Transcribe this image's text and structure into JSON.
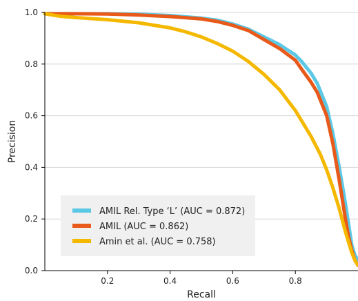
{
  "chart_data": {
    "type": "line",
    "title": "",
    "xlabel": "Recall",
    "ylabel": "Precision",
    "xlim": [
      0.0,
      1.0
    ],
    "ylim": [
      0.0,
      1.0
    ],
    "xticks": [
      0.2,
      0.4,
      0.6,
      0.8
    ],
    "yticks": [
      0.0,
      0.2,
      0.4,
      0.6,
      0.8,
      1.0
    ],
    "grid": "horizontal",
    "legend_position": "lower-left",
    "series": [
      {
        "name": "AMIL Rel. Type ‘L’ (AUC = 0.872)",
        "color": "#5bc8e6",
        "x": [
          0.0,
          0.1,
          0.2,
          0.3,
          0.4,
          0.5,
          0.55,
          0.6,
          0.65,
          0.7,
          0.75,
          0.8,
          0.82,
          0.85,
          0.87,
          0.9,
          0.92,
          0.94,
          0.96,
          0.97,
          0.98,
          0.99,
          1.0
        ],
        "y": [
          0.995,
          0.995,
          0.995,
          0.993,
          0.988,
          0.978,
          0.97,
          0.955,
          0.935,
          0.905,
          0.875,
          0.835,
          0.81,
          0.765,
          0.725,
          0.635,
          0.53,
          0.4,
          0.26,
          0.18,
          0.1,
          0.06,
          0.04
        ]
      },
      {
        "name": "AMIL (AUC = 0.862)",
        "color": "#e8591a",
        "x": [
          0.0,
          0.1,
          0.2,
          0.3,
          0.4,
          0.5,
          0.55,
          0.6,
          0.65,
          0.7,
          0.75,
          0.8,
          0.82,
          0.85,
          0.87,
          0.9,
          0.92,
          0.94,
          0.96,
          0.97,
          0.98,
          0.99,
          1.0
        ],
        "y": [
          0.995,
          0.995,
          0.994,
          0.99,
          0.984,
          0.975,
          0.965,
          0.95,
          0.93,
          0.895,
          0.86,
          0.815,
          0.78,
          0.73,
          0.69,
          0.6,
          0.49,
          0.35,
          0.2,
          0.13,
          0.08,
          0.04,
          0.02
        ]
      },
      {
        "name": "Amin et al. (AUC = 0.758)",
        "color": "#f5b800",
        "x": [
          0.0,
          0.05,
          0.1,
          0.2,
          0.3,
          0.4,
          0.45,
          0.5,
          0.55,
          0.6,
          0.65,
          0.7,
          0.75,
          0.8,
          0.85,
          0.88,
          0.9,
          0.92,
          0.94,
          0.96,
          0.98,
          0.99,
          1.0
        ],
        "y": [
          0.995,
          0.985,
          0.98,
          0.972,
          0.96,
          0.94,
          0.925,
          0.905,
          0.88,
          0.85,
          0.81,
          0.76,
          0.7,
          0.62,
          0.52,
          0.45,
          0.39,
          0.32,
          0.24,
          0.15,
          0.07,
          0.04,
          0.02
        ]
      }
    ]
  }
}
